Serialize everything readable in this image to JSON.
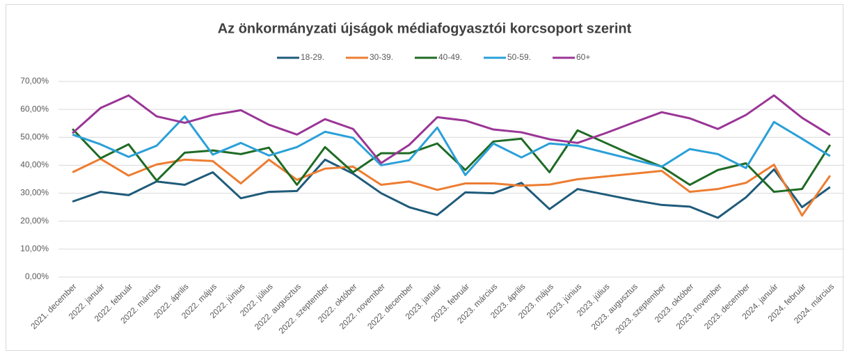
{
  "chart_data": {
    "type": "line",
    "title": "Az önkormányzati újságok médiafogyasztói korcsoport szerint",
    "categories": [
      "2021. december",
      "2022. január",
      "2022. február",
      "2022. március",
      "2022. április",
      "2022. május",
      "2022. június",
      "2022. július",
      "2022. augusztus",
      "2022. szeptember",
      "2022. október",
      "2022. november",
      "2022. december",
      "2023. január",
      "2023. február",
      "2023. március",
      "2023. április",
      "2023. május",
      "2023. június",
      "2023. július",
      "2023. augusztus",
      "2023. szeptember",
      "2023. október",
      "2023. november",
      "2023. december",
      "2024. január",
      "2024. február",
      "2024. március"
    ],
    "series": [
      {
        "name": "18-29.",
        "color": "#1f5b7a",
        "values": [
          27,
          30.5,
          29.3,
          34.2,
          33,
          37.5,
          28.2,
          30.5,
          30.8,
          42,
          37,
          30,
          25,
          22.2,
          30.3,
          30,
          33.7,
          24.3,
          31.5,
          29.5,
          27.5,
          25.8,
          25.2,
          21.2,
          28.5,
          38.5,
          25,
          32.2
        ]
      },
      {
        "name": "30-39.",
        "color": "#ed7d31",
        "values": [
          37.5,
          42.3,
          36.3,
          40.3,
          42,
          41.5,
          33.5,
          42,
          34.8,
          38.8,
          39.5,
          33,
          34.2,
          31.2,
          33.5,
          33.5,
          32.7,
          33.1,
          35,
          36,
          37,
          38,
          30.5,
          31.5,
          33.7,
          40.2,
          22,
          36.3
        ]
      },
      {
        "name": "40-49.",
        "color": "#1e6b24",
        "values": [
          53,
          42.5,
          47.5,
          34.5,
          44.5,
          45.3,
          44,
          46.3,
          33,
          46.5,
          37.5,
          44.3,
          44.3,
          47.8,
          38.3,
          48.5,
          49.5,
          37.5,
          52.5,
          48,
          43.5,
          39.5,
          33,
          38.3,
          40.7,
          30.5,
          31.5,
          47.3
        ]
      },
      {
        "name": "50-59.",
        "color": "#2aa0d8",
        "values": [
          51,
          47.5,
          43,
          47,
          57.5,
          43.8,
          48,
          43.5,
          46.5,
          52,
          49.8,
          40,
          41.8,
          53.5,
          36.5,
          47.8,
          42.8,
          47.8,
          47,
          44.5,
          42,
          39.5,
          45.8,
          44,
          39,
          55.5,
          49.5,
          43.3
        ]
      },
      {
        "name": "60+",
        "color": "#9a3596",
        "values": [
          51.5,
          60.5,
          65,
          57.5,
          55.2,
          58,
          59.7,
          54.5,
          51,
          56.5,
          53,
          40.8,
          47.3,
          57.2,
          56,
          52.8,
          51.8,
          49.3,
          48,
          51.5,
          55.3,
          59,
          56.8,
          53,
          58,
          65,
          57,
          50.8
        ]
      }
    ],
    "ylim": [
      0,
      70
    ],
    "yticks": [
      {
        "value": 0,
        "label": "0,00%"
      },
      {
        "value": 10,
        "label": "10,00%"
      },
      {
        "value": 20,
        "label": "20,00%"
      },
      {
        "value": 30,
        "label": "30,00%"
      },
      {
        "value": 40,
        "label": "40,00%"
      },
      {
        "value": 50,
        "label": "50,00%"
      },
      {
        "value": 60,
        "label": "60,00%"
      },
      {
        "value": 70,
        "label": "70,00%"
      }
    ],
    "grid": true,
    "legend": "top"
  }
}
